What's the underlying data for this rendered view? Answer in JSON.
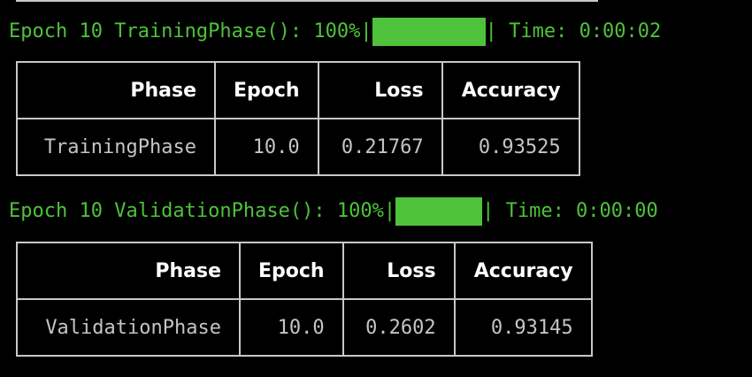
{
  "colors": {
    "background": "#000000",
    "progress_green": "#4ec23a",
    "table_border": "#c8c8c8",
    "header_text": "#ffffff",
    "cell_text": "#c4c4c4"
  },
  "training": {
    "progress_prefix": "Epoch 10 TrainingPhase(): 100%|",
    "progress_fraction": 1.0,
    "progress_suffix": "| Time: 0:00:02",
    "headers": [
      "Phase",
      "Epoch",
      "Loss",
      "Accuracy"
    ],
    "row": [
      "TrainingPhase",
      "10.0",
      "0.21767",
      "0.93525"
    ]
  },
  "validation": {
    "progress_prefix": "Epoch 10 ValidationPhase(): 100%|",
    "progress_fraction": 1.0,
    "progress_suffix": "| Time: 0:00:00",
    "headers": [
      "Phase",
      "Epoch",
      "Loss",
      "Accuracy"
    ],
    "row": [
      "ValidationPhase",
      "10.0",
      "0.2602",
      "0.93145"
    ]
  }
}
